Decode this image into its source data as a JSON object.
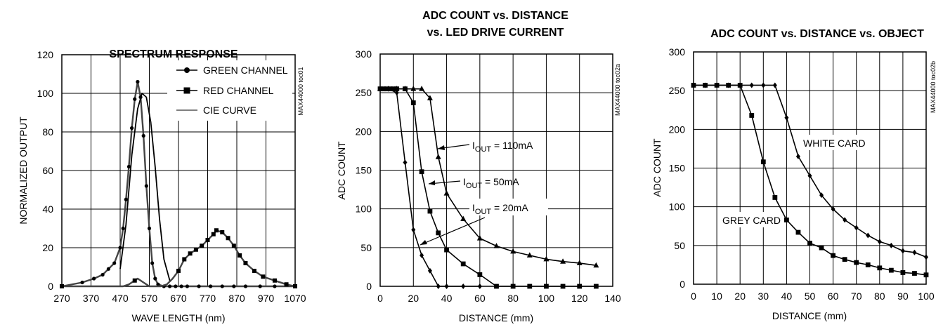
{
  "chart_data": [
    {
      "type": "line",
      "title": "SPECTRUM RESPONSE",
      "code_label": "MAX44000 toc01",
      "xlabel": "WAVE LENGTH (nm)",
      "ylabel": "NORMALIZED OUTPUT",
      "xlim": [
        270,
        1070
      ],
      "ylim": [
        0,
        120
      ],
      "xticks": [
        270,
        370,
        470,
        570,
        670,
        770,
        870,
        970,
        1070
      ],
      "yticks": [
        0,
        20,
        40,
        60,
        80,
        100,
        120
      ],
      "grid": true,
      "legend": "top-right",
      "series": [
        {
          "name": "GREEN CHANNEL",
          "marker": "circle",
          "x": [
            270,
            340,
            380,
            410,
            430,
            450,
            470,
            480,
            490,
            500,
            510,
            520,
            530,
            540,
            550,
            560,
            570,
            580,
            590,
            600,
            620,
            640,
            660,
            680,
            700,
            740,
            780,
            820,
            860,
            900,
            950,
            1000,
            1070
          ],
          "y": [
            0,
            2,
            4,
            6,
            9,
            12,
            20,
            30,
            45,
            62,
            82,
            97,
            106,
            98,
            78,
            52,
            30,
            12,
            4,
            1,
            0,
            0,
            0,
            0,
            0,
            0,
            0,
            0,
            0,
            0,
            0,
            0,
            0
          ]
        },
        {
          "name": "RED CHANNEL",
          "marker": "square",
          "x": [
            270,
            400,
            480,
            500,
            520,
            530,
            550,
            570,
            590,
            610,
            630,
            650,
            670,
            690,
            710,
            730,
            750,
            770,
            790,
            800,
            820,
            840,
            860,
            880,
            900,
            930,
            960,
            1000,
            1040,
            1070
          ],
          "y": [
            0,
            0,
            0,
            1,
            3,
            4,
            2,
            0,
            0,
            0,
            1,
            4,
            8,
            14,
            17,
            19,
            21,
            24,
            27,
            29,
            28,
            25,
            21,
            16,
            12,
            8,
            5,
            3,
            1,
            0
          ],
          "markers": [
            true,
            false,
            false,
            false,
            true,
            false,
            false,
            false,
            false,
            false,
            false,
            false,
            true,
            true,
            true,
            true,
            true,
            true,
            true,
            true,
            true,
            true,
            true,
            true,
            true,
            true,
            true,
            true,
            true,
            true
          ]
        },
        {
          "name": "CIE CURVE",
          "marker": "none",
          "x": [
            470,
            490,
            510,
            530,
            545,
            560,
            575,
            590,
            605,
            620,
            640
          ],
          "y": [
            9,
            32,
            68,
            92,
            100,
            98,
            85,
            62,
            35,
            14,
            3
          ]
        }
      ]
    },
    {
      "type": "line",
      "title": "ADC COUNT vs. DISTANCE",
      "subtitle": "vs. LED DRIVE CURRENT",
      "code_label": "MAX44000 toc02a",
      "xlabel": "DISTANCE (mm)",
      "ylabel": "ADC COUNT",
      "xlim": [
        0,
        140
      ],
      "ylim": [
        0,
        300
      ],
      "xticks": [
        0,
        20,
        40,
        60,
        80,
        100,
        120,
        140
      ],
      "yticks": [
        0,
        50,
        100,
        150,
        200,
        250,
        300
      ],
      "grid": true,
      "series": [
        {
          "name": "IOUT = 110mA",
          "marker": "triangle",
          "x": [
            0,
            5,
            10,
            15,
            20,
            25,
            30,
            35,
            40,
            50,
            60,
            70,
            80,
            90,
            100,
            110,
            120,
            130
          ],
          "y": [
            255,
            255,
            255,
            255,
            255,
            255,
            243,
            167,
            120,
            87,
            62,
            52,
            45,
            40,
            35,
            32,
            30,
            27
          ]
        },
        {
          "name": "IOUT = 50mA",
          "marker": "square",
          "x": [
            0,
            2,
            4,
            6,
            8,
            10,
            15,
            20,
            25,
            30,
            35,
            40,
            50,
            60,
            70,
            80,
            90,
            100,
            110,
            120,
            130
          ],
          "y": [
            255,
            255,
            255,
            255,
            255,
            255,
            255,
            237,
            148,
            97,
            69,
            47,
            29,
            15,
            0,
            0,
            0,
            0,
            0,
            0,
            0
          ]
        },
        {
          "name": "IOUT = 20mA",
          "marker": "diamond",
          "x": [
            0,
            5,
            10,
            15,
            20,
            25,
            30,
            35,
            40,
            50,
            60
          ],
          "y": [
            255,
            255,
            250,
            160,
            73,
            40,
            20,
            0,
            0,
            0,
            0
          ]
        }
      ],
      "annotations": [
        {
          "text": "I",
          "sub": "OUT",
          "rest": " = 110mA",
          "series": "IOUT = 110mA"
        },
        {
          "text": "I",
          "sub": "OUT",
          "rest": " = 50mA",
          "series": "IOUT = 50mA"
        },
        {
          "text": "I",
          "sub": "OUT",
          "rest": " = 20mA",
          "series": "IOUT = 20mA"
        }
      ]
    },
    {
      "type": "line",
      "title": "ADC COUNT vs. DISTANCE vs. OBJECT",
      "code_label": "MAX44000 toc02b",
      "xlabel": "DISTANCE (mm)",
      "ylabel": "ADC COUNT",
      "xlim": [
        0,
        100
      ],
      "ylim": [
        0,
        300
      ],
      "xticks": [
        0,
        10,
        20,
        30,
        40,
        50,
        60,
        70,
        80,
        90,
        100
      ],
      "yticks": [
        0,
        50,
        100,
        150,
        200,
        250,
        300
      ],
      "grid": true,
      "series": [
        {
          "name": "WHITE CARD",
          "marker": "diamond",
          "x": [
            0,
            5,
            10,
            15,
            20,
            25,
            30,
            35,
            40,
            45,
            50,
            55,
            60,
            65,
            70,
            75,
            80,
            85,
            90,
            95,
            100
          ],
          "y": [
            257,
            257,
            257,
            257,
            257,
            257,
            257,
            257,
            215,
            165,
            140,
            115,
            97,
            83,
            73,
            63,
            55,
            50,
            43,
            41,
            35
          ]
        },
        {
          "name": "GREY CARD",
          "marker": "square",
          "x": [
            0,
            5,
            10,
            15,
            20,
            25,
            30,
            35,
            40,
            45,
            50,
            55,
            60,
            65,
            70,
            75,
            80,
            85,
            90,
            95,
            100
          ],
          "y": [
            257,
            257,
            257,
            257,
            257,
            218,
            158,
            112,
            83,
            67,
            53,
            47,
            37,
            32,
            28,
            25,
            21,
            18,
            15,
            14,
            12
          ]
        }
      ],
      "annotations": [
        {
          "text": "WHITE CARD",
          "series": "WHITE CARD"
        },
        {
          "text": "GREY CARD",
          "series": "GREY CARD"
        }
      ]
    }
  ]
}
